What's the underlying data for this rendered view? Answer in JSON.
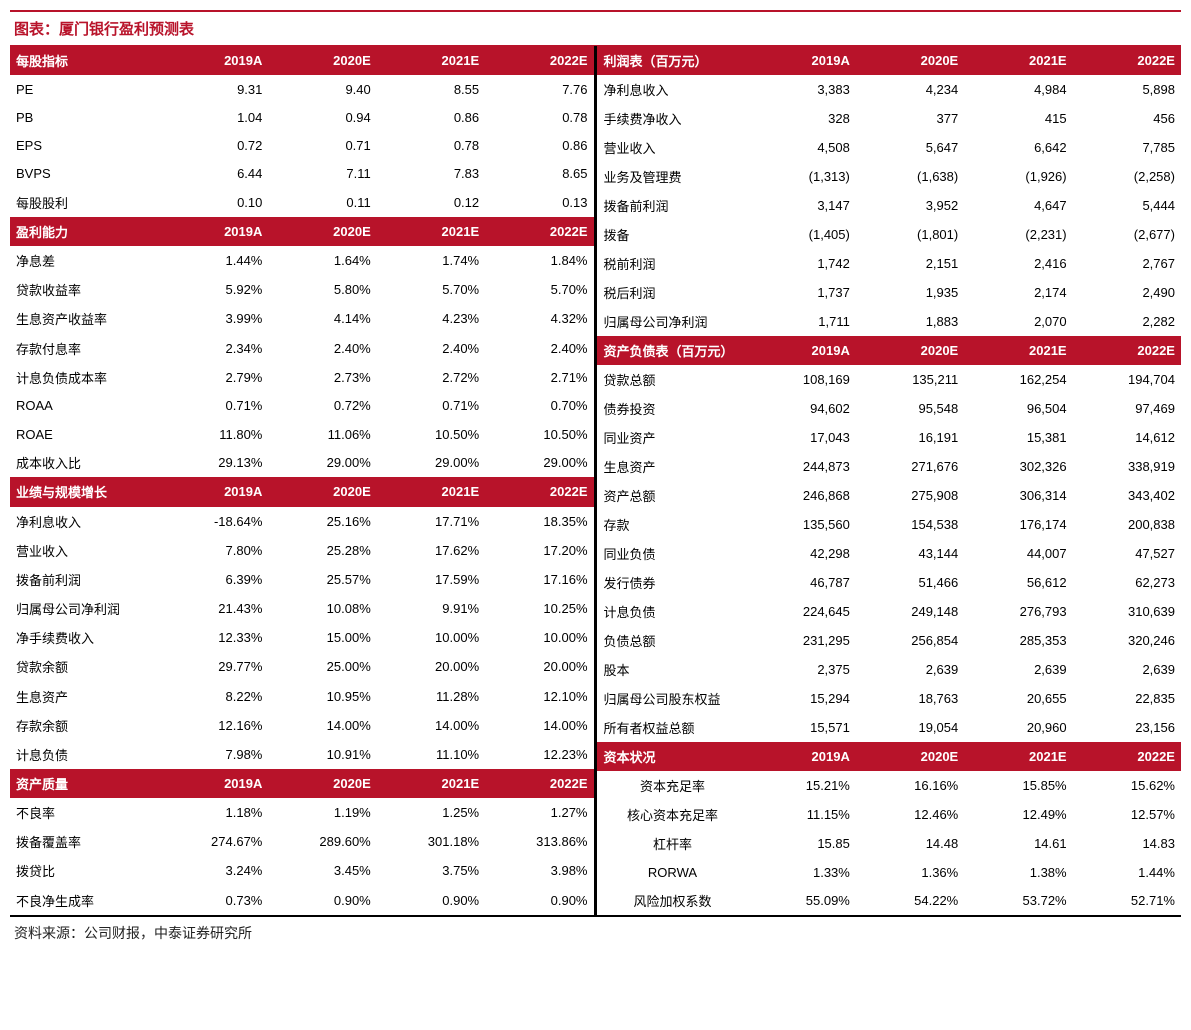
{
  "title": "图表：厦门银行盈利预测表",
  "source": "资料来源：公司财报，中泰证券研究所",
  "colors": {
    "header_bg": "#b8132a",
    "header_text": "#ffffff",
    "title_text": "#b8132a",
    "divider": "#000000",
    "row_bg": "#ffffff",
    "bottom_border": "#000000"
  },
  "years": [
    "2019A",
    "2020E",
    "2021E",
    "2022E"
  ],
  "left_sections": [
    {
      "header": "每股指标",
      "rows": [
        {
          "label": "PE",
          "v": [
            "9.31",
            "9.40",
            "8.55",
            "7.76"
          ]
        },
        {
          "label": "PB",
          "v": [
            "1.04",
            "0.94",
            "0.86",
            "0.78"
          ]
        },
        {
          "label": "EPS",
          "v": [
            "0.72",
            "0.71",
            "0.78",
            "0.86"
          ]
        },
        {
          "label": "BVPS",
          "v": [
            "6.44",
            "7.11",
            "7.83",
            "8.65"
          ]
        },
        {
          "label": "每股股利",
          "v": [
            "0.10",
            "0.11",
            "0.12",
            "0.13"
          ]
        }
      ]
    },
    {
      "header": "盈利能力",
      "rows": [
        {
          "label": "净息差",
          "v": [
            "1.44%",
            "1.64%",
            "1.74%",
            "1.84%"
          ]
        },
        {
          "label": "贷款收益率",
          "v": [
            "5.92%",
            "5.80%",
            "5.70%",
            "5.70%"
          ]
        },
        {
          "label": "生息资产收益率",
          "v": [
            "3.99%",
            "4.14%",
            "4.23%",
            "4.32%"
          ]
        },
        {
          "label": "存款付息率",
          "v": [
            "2.34%",
            "2.40%",
            "2.40%",
            "2.40%"
          ]
        },
        {
          "label": "计息负债成本率",
          "v": [
            "2.79%",
            "2.73%",
            "2.72%",
            "2.71%"
          ]
        },
        {
          "label": "ROAA",
          "v": [
            "0.71%",
            "0.72%",
            "0.71%",
            "0.70%"
          ]
        },
        {
          "label": "ROAE",
          "v": [
            "11.80%",
            "11.06%",
            "10.50%",
            "10.50%"
          ]
        },
        {
          "label": "成本收入比",
          "v": [
            "29.13%",
            "29.00%",
            "29.00%",
            "29.00%"
          ]
        }
      ]
    },
    {
      "header": "业绩与规模增长",
      "rows": [
        {
          "label": "净利息收入",
          "v": [
            "-18.64%",
            "25.16%",
            "17.71%",
            "18.35%"
          ]
        },
        {
          "label": "营业收入",
          "v": [
            "7.80%",
            "25.28%",
            "17.62%",
            "17.20%"
          ]
        },
        {
          "label": "拨备前利润",
          "v": [
            "6.39%",
            "25.57%",
            "17.59%",
            "17.16%"
          ]
        },
        {
          "label": "归属母公司净利润",
          "v": [
            "21.43%",
            "10.08%",
            "9.91%",
            "10.25%"
          ]
        },
        {
          "label": "净手续费收入",
          "v": [
            "12.33%",
            "15.00%",
            "10.00%",
            "10.00%"
          ]
        },
        {
          "label": "贷款余额",
          "v": [
            "29.77%",
            "25.00%",
            "20.00%",
            "20.00%"
          ]
        },
        {
          "label": "生息资产",
          "v": [
            "8.22%",
            "10.95%",
            "11.28%",
            "12.10%"
          ]
        },
        {
          "label": "存款余额",
          "v": [
            "12.16%",
            "14.00%",
            "14.00%",
            "14.00%"
          ]
        },
        {
          "label": "计息负债",
          "v": [
            "7.98%",
            "10.91%",
            "11.10%",
            "12.23%"
          ]
        }
      ]
    },
    {
      "header": "资产质量",
      "rows": [
        {
          "label": "不良率",
          "v": [
            "1.18%",
            "1.19%",
            "1.25%",
            "1.27%"
          ]
        },
        {
          "label": "拨备覆盖率",
          "v": [
            "274.67%",
            "289.60%",
            "301.18%",
            "313.86%"
          ]
        },
        {
          "label": "拨贷比",
          "v": [
            "3.24%",
            "3.45%",
            "3.75%",
            "3.98%"
          ]
        },
        {
          "label": "不良净生成率",
          "v": [
            "0.73%",
            "0.90%",
            "0.90%",
            "0.90%"
          ]
        }
      ]
    }
  ],
  "right_sections": [
    {
      "header": "利润表（百万元）",
      "rows": [
        {
          "label": "净利息收入",
          "v": [
            "3,383",
            "4,234",
            "4,984",
            "5,898"
          ]
        },
        {
          "label": "手续费净收入",
          "v": [
            "328",
            "377",
            "415",
            "456"
          ]
        },
        {
          "label": "营业收入",
          "v": [
            "4,508",
            "5,647",
            "6,642",
            "7,785"
          ]
        },
        {
          "label": "业务及管理费",
          "v": [
            "(1,313)",
            "(1,638)",
            "(1,926)",
            "(2,258)"
          ]
        },
        {
          "label": "拨备前利润",
          "v": [
            "3,147",
            "3,952",
            "4,647",
            "5,444"
          ]
        },
        {
          "label": "拨备",
          "v": [
            "(1,405)",
            "(1,801)",
            "(2,231)",
            "(2,677)"
          ]
        },
        {
          "label": "税前利润",
          "v": [
            "1,742",
            "2,151",
            "2,416",
            "2,767"
          ]
        },
        {
          "label": "税后利润",
          "v": [
            "1,737",
            "1,935",
            "2,174",
            "2,490"
          ]
        },
        {
          "label": "归属母公司净利润",
          "v": [
            "1,711",
            "1,883",
            "2,070",
            "2,282"
          ]
        }
      ]
    },
    {
      "header": "资产负债表（百万元）",
      "rows": [
        {
          "label": "贷款总额",
          "v": [
            "108,169",
            "135,211",
            "162,254",
            "194,704"
          ]
        },
        {
          "label": "债券投资",
          "v": [
            "94,602",
            "95,548",
            "96,504",
            "97,469"
          ]
        },
        {
          "label": "同业资产",
          "v": [
            "17,043",
            "16,191",
            "15,381",
            "14,612"
          ]
        },
        {
          "label": "生息资产",
          "v": [
            "244,873",
            "271,676",
            "302,326",
            "338,919"
          ]
        },
        {
          "label": "资产总额",
          "v": [
            "246,868",
            "275,908",
            "306,314",
            "343,402"
          ]
        },
        {
          "label": "存款",
          "v": [
            "135,560",
            "154,538",
            "176,174",
            "200,838"
          ]
        },
        {
          "label": "同业负债",
          "v": [
            "42,298",
            "43,144",
            "44,007",
            "47,527"
          ]
        },
        {
          "label": "发行债券",
          "v": [
            "46,787",
            "51,466",
            "56,612",
            "62,273"
          ]
        },
        {
          "label": "计息负债",
          "v": [
            "224,645",
            "249,148",
            "276,793",
            "310,639"
          ]
        },
        {
          "label": "负债总额",
          "v": [
            "231,295",
            "256,854",
            "285,353",
            "320,246"
          ]
        },
        {
          "label": "股本",
          "v": [
            "2,375",
            "2,639",
            "2,639",
            "2,639"
          ]
        },
        {
          "label": "归属母公司股东权益",
          "v": [
            "15,294",
            "18,763",
            "20,655",
            "22,835"
          ]
        },
        {
          "label": "所有者权益总额",
          "v": [
            "15,571",
            "19,054",
            "20,960",
            "23,156"
          ]
        }
      ]
    },
    {
      "header": "资本状况",
      "center": true,
      "rows": [
        {
          "label": "资本充足率",
          "v": [
            "15.21%",
            "16.16%",
            "15.85%",
            "15.62%"
          ]
        },
        {
          "label": "核心资本充足率",
          "v": [
            "11.15%",
            "12.46%",
            "12.49%",
            "12.57%"
          ]
        },
        {
          "label": "杠杆率",
          "v": [
            "15.85",
            "14.48",
            "14.61",
            "14.83"
          ]
        },
        {
          "label": "RORWA",
          "v": [
            "1.33%",
            "1.36%",
            "1.38%",
            "1.44%"
          ]
        },
        {
          "label": "风险加权系数",
          "v": [
            "55.09%",
            "54.22%",
            "53.72%",
            "52.71%"
          ]
        }
      ]
    }
  ]
}
